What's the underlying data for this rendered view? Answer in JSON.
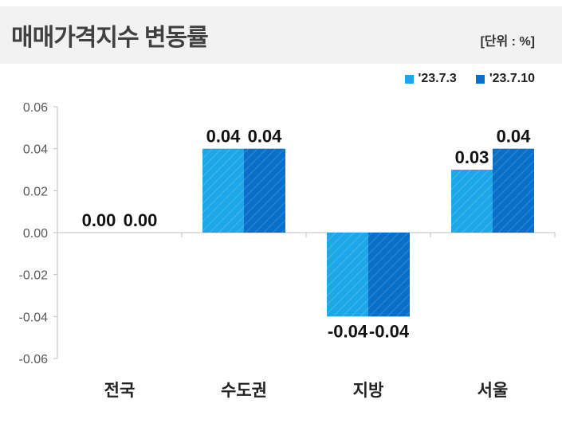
{
  "chart_data": {
    "type": "bar",
    "title": "매매가격지수 변동률",
    "unit": "[단위 : %]",
    "categories": [
      "전국",
      "수도권",
      "지방",
      "서울"
    ],
    "series": [
      {
        "name": "'23.7.3",
        "color": "#1ea7e8",
        "values": [
          0.0,
          0.04,
          -0.04,
          0.03
        ]
      },
      {
        "name": "'23.7.10",
        "color": "#0a6fc9",
        "values": [
          0.0,
          0.04,
          -0.04,
          0.04
        ]
      }
    ],
    "ylim": [
      -0.06,
      0.06
    ],
    "yticks": [
      "0.06",
      "0.04",
      "0.02",
      "0.00",
      "-0.02",
      "-0.04",
      "-0.06"
    ],
    "legend": "top-right",
    "grid": false
  }
}
